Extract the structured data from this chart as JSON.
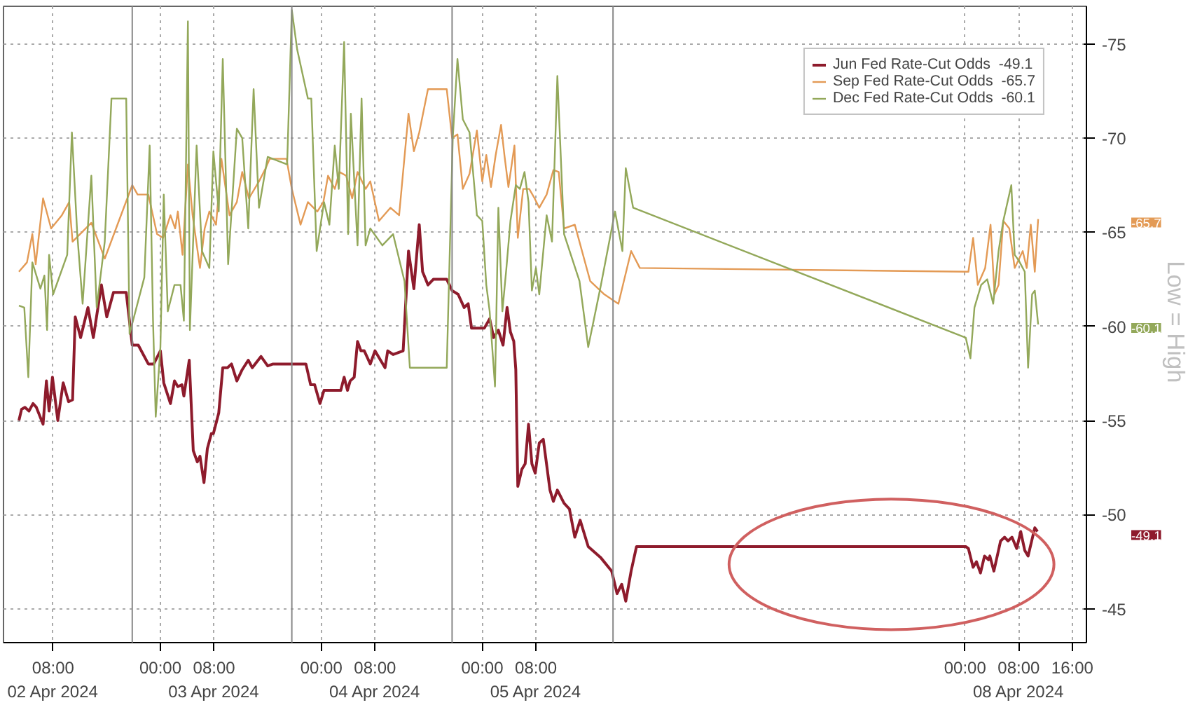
{
  "chart_data": {
    "type": "line",
    "xlim": [
      "2024-04-02T00:36",
      "2024-04-08T18:06"
    ],
    "ylim": [
      -43.2,
      -77
    ],
    "xticks": [
      {
        "value": "2024-04-02T08:00",
        "label": "08:00\n02 Apr 2024"
      },
      {
        "value": "2024-04-03T00:00",
        "label": "00:00"
      },
      {
        "value": "2024-04-03T08:00",
        "label": "08:00\n03 Apr 2024"
      },
      {
        "value": "2024-04-04T00:00",
        "label": "00:00"
      },
      {
        "value": "2024-04-04T08:00",
        "label": "08:00\n04 Apr 2024"
      },
      {
        "value": "2024-04-05T00:00",
        "label": "00:00"
      },
      {
        "value": "2024-04-05T08:00",
        "label": "08:00\n05 Apr 2024"
      },
      {
        "value": "2024-04-08T00:00",
        "label": "00:00"
      },
      {
        "value": "2024-04-08T08:00",
        "label": "08:00\n08 Apr 2024"
      },
      {
        "value": "2024-04-08T16:00",
        "label": "16:00"
      }
    ],
    "yticks": [
      -75,
      -70,
      -65,
      -60,
      -55,
      -50,
      -45
    ],
    "grid": true,
    "legend": "top right",
    "line_style": "solid",
    "series": [
      {
        "name": "Jun Fed Rate-Cut Odds  -49.1",
        "color": "#8e1b2c",
        "x": [
          "2024-04-02T02:54",
          "2024-04-02T03:18",
          "2024-04-02T03:48",
          "2024-04-02T04:24",
          "2024-04-02T05:00",
          "2024-04-02T05:30",
          "2024-04-02T06:30",
          "2024-04-02T07:00",
          "2024-04-02T07:24",
          "2024-04-02T07:54",
          "2024-04-02T08:42",
          "2024-04-02T09:30",
          "2024-04-02T10:18",
          "2024-04-02T10:54",
          "2024-04-02T11:18",
          "2024-04-02T12:06",
          "2024-04-02T13:12",
          "2024-04-02T14:00",
          "2024-04-02T15:12",
          "2024-04-02T16:00",
          "2024-04-02T17:00",
          "2024-04-02T18:54",
          "2024-04-02T19:48",
          "2024-04-02T20:42",
          "2024-04-02T22:12",
          "2024-04-02T23:00",
          "2024-04-03T00:00",
          "2024-04-03T00:30",
          "2024-04-03T01:30",
          "2024-04-03T02:06",
          "2024-04-03T02:36",
          "2024-04-03T03:12",
          "2024-04-03T03:30",
          "2024-04-03T04:18",
          "2024-04-03T04:54",
          "2024-04-03T05:30",
          "2024-04-03T05:54",
          "2024-04-03T06:30",
          "2024-04-03T07:00",
          "2024-04-03T07:36",
          "2024-04-03T07:54",
          "2024-04-03T08:42",
          "2024-04-03T09:18",
          "2024-04-03T10:00",
          "2024-04-03T10:36",
          "2024-04-03T11:24",
          "2024-04-03T12:12",
          "2024-04-03T13:06",
          "2024-04-03T13:42",
          "2024-04-03T15:00",
          "2024-04-03T16:00",
          "2024-04-03T16:48",
          "2024-04-03T21:42",
          "2024-04-03T22:24",
          "2024-04-03T23:00",
          "2024-04-03T23:48",
          "2024-04-04T00:24",
          "2024-04-04T02:54",
          "2024-04-04T03:24",
          "2024-04-04T03:54",
          "2024-04-04T04:18",
          "2024-04-04T04:54",
          "2024-04-04T05:24",
          "2024-04-04T05:54",
          "2024-04-04T06:24",
          "2024-04-04T07:18",
          "2024-04-04T08:00",
          "2024-04-04T09:30",
          "2024-04-04T09:54",
          "2024-04-04T10:42",
          "2024-04-04T12:12",
          "2024-04-04T13:00",
          "2024-04-04T13:48",
          "2024-04-04T14:36",
          "2024-04-04T15:06",
          "2024-04-04T15:54",
          "2024-04-04T16:42",
          "2024-04-04T18:42",
          "2024-04-04T19:30",
          "2024-04-04T20:24",
          "2024-04-04T21:18",
          "2024-04-04T21:54",
          "2024-04-04T22:24",
          "2024-04-05T00:18",
          "2024-04-05T01:06",
          "2024-04-05T01:42",
          "2024-04-05T02:24",
          "2024-04-05T03:06",
          "2024-04-05T03:42",
          "2024-04-05T04:12",
          "2024-04-05T04:42",
          "2024-04-05T05:00",
          "2024-04-05T05:18",
          "2024-04-05T05:54",
          "2024-04-05T06:24",
          "2024-04-05T06:54",
          "2024-04-05T07:24",
          "2024-04-05T07:54",
          "2024-04-05T08:30",
          "2024-04-05T09:06",
          "2024-04-05T10:06",
          "2024-04-05T10:36",
          "2024-04-05T11:12",
          "2024-04-05T12:12",
          "2024-04-05T13:00",
          "2024-04-05T13:48",
          "2024-04-05T14:36",
          "2024-04-05T15:48",
          "2024-04-05T17:42",
          "2024-04-05T19:18",
          "2024-04-05T20:06",
          "2024-04-05T20:48",
          "2024-04-05T21:24",
          "2024-04-05T22:12",
          "2024-04-05T23:00",
          "2024-04-08T00:06",
          "2024-04-08T00:30",
          "2024-04-08T01:12",
          "2024-04-08T01:42",
          "2024-04-08T02:18",
          "2024-04-08T02:54",
          "2024-04-08T03:30",
          "2024-04-08T03:42",
          "2024-04-08T04:18",
          "2024-04-08T05:18",
          "2024-04-08T05:54",
          "2024-04-08T06:24",
          "2024-04-08T07:00",
          "2024-04-08T07:42",
          "2024-04-08T08:18",
          "2024-04-08T08:54",
          "2024-04-08T09:24",
          "2024-04-08T10:24",
          "2024-04-08T10:48"
        ],
        "values": [
          -55.0,
          -55.6,
          -55.7,
          -55.5,
          -55.9,
          -55.7,
          -54.8,
          -57.1,
          -55.5,
          -57.3,
          -55.0,
          -57.0,
          -56.0,
          -56.1,
          -60.5,
          -59.4,
          -61.0,
          -59.4,
          -62.2,
          -60.5,
          -61.8,
          -61.8,
          -59.0,
          -59.0,
          -58.0,
          -58.0,
          -58.7,
          -57.0,
          -55.9,
          -57.1,
          -56.8,
          -56.9,
          -56.3,
          -58.2,
          -53.4,
          -52.8,
          -53.1,
          -51.7,
          -53.5,
          -54.3,
          -54.3,
          -55.4,
          -57.8,
          -57.8,
          -58.0,
          -57.1,
          -57.7,
          -58.2,
          -57.8,
          -58.4,
          -57.9,
          -58.0,
          -58.0,
          -56.9,
          -56.9,
          -55.9,
          -56.6,
          -56.6,
          -57.3,
          -56.6,
          -57.1,
          -57.3,
          -59.2,
          -58.7,
          -58.7,
          -58.0,
          -58.7,
          -57.8,
          -58.7,
          -58.5,
          -58.7,
          -64.0,
          -62.0,
          -65.4,
          -62.9,
          -62.2,
          -62.5,
          -62.5,
          -61.9,
          -61.7,
          -61.0,
          -61.2,
          -59.9,
          -59.9,
          -60.4,
          -59.4,
          -59.8,
          -59.0,
          -61.0,
          -59.7,
          -59.2,
          -57.7,
          -51.5,
          -52.4,
          -52.7,
          -54.8,
          -52.7,
          -52.2,
          -53.8,
          -54.0,
          -51.3,
          -50.7,
          -51.3,
          -50.6,
          -50.3,
          -48.8,
          -49.7,
          -48.3,
          -47.7,
          -47.0,
          -45.8,
          -46.3,
          -45.4,
          -47.0,
          -48.3,
          -48.3,
          -48.2,
          -47.2,
          -47.5,
          -46.9,
          -47.8,
          -47.6,
          -47.8,
          -47.0,
          -48.6,
          -48.8,
          -48.6,
          -48.8,
          -48.2,
          -49.1,
          -48.1,
          -47.8,
          -49.3,
          -49.1
        ]
      },
      {
        "name": "Sep Fed Rate-Cut Odds  -65.7",
        "color": "#e39a55",
        "x": [
          "2024-04-02T02:54",
          "2024-04-02T04:06",
          "2024-04-02T04:54",
          "2024-04-02T05:24",
          "2024-04-02T06:30",
          "2024-04-02T07:42",
          "2024-04-02T09:18",
          "2024-04-02T10:24",
          "2024-04-02T10:54",
          "2024-04-02T13:42",
          "2024-04-02T15:42",
          "2024-04-02T19:48",
          "2024-04-02T20:36",
          "2024-04-02T22:12",
          "2024-04-02T23:30",
          "2024-04-03T00:24",
          "2024-04-03T01:30",
          "2024-04-03T02:12",
          "2024-04-03T02:36",
          "2024-04-03T03:18",
          "2024-04-03T04:06",
          "2024-04-03T04:48",
          "2024-04-03T05:54",
          "2024-04-03T06:36",
          "2024-04-03T07:18",
          "2024-04-03T08:18",
          "2024-04-03T09:06",
          "2024-04-03T10:18",
          "2024-04-03T11:24",
          "2024-04-03T12:12",
          "2024-04-03T13:12",
          "2024-04-03T14:42",
          "2024-04-03T15:42",
          "2024-04-03T16:18",
          "2024-04-03T18:48",
          "2024-04-03T19:36",
          "2024-04-03T20:54",
          "2024-04-03T22:00",
          "2024-04-03T23:24",
          "2024-04-04T00:18",
          "2024-04-04T01:00",
          "2024-04-04T02:00",
          "2024-04-04T02:42",
          "2024-04-04T03:42",
          "2024-04-04T04:36",
          "2024-04-04T05:24",
          "2024-04-04T06:36",
          "2024-04-04T07:18",
          "2024-04-04T08:36",
          "2024-04-04T10:18",
          "2024-04-04T11:36",
          "2024-04-04T13:00",
          "2024-04-04T13:48",
          "2024-04-04T14:36",
          "2024-04-04T15:54",
          "2024-04-04T18:42",
          "2024-04-04T19:30",
          "2024-04-04T20:18",
          "2024-04-04T21:06",
          "2024-04-04T22:06",
          "2024-04-04T23:12",
          "2024-04-05T00:00",
          "2024-04-05T00:36",
          "2024-04-05T01:18",
          "2024-04-05T02:00",
          "2024-04-05T02:48",
          "2024-04-05T03:18",
          "2024-04-05T03:54",
          "2024-04-05T04:48",
          "2024-04-05T05:18",
          "2024-04-05T06:06",
          "2024-04-05T07:00",
          "2024-04-05T07:48",
          "2024-04-05T08:30",
          "2024-04-05T09:36",
          "2024-04-05T10:36",
          "2024-04-05T11:24",
          "2024-04-05T12:12",
          "2024-04-05T13:48",
          "2024-04-05T16:06",
          "2024-04-05T18:12",
          "2024-04-05T20:18",
          "2024-04-05T22:12",
          "2024-04-05T23:30",
          "2024-04-08T00:30",
          "2024-04-08T01:12",
          "2024-04-08T01:54",
          "2024-04-08T03:00",
          "2024-04-08T03:48",
          "2024-04-08T04:24",
          "2024-04-08T05:00",
          "2024-04-08T05:42",
          "2024-04-08T06:36",
          "2024-04-08T07:24",
          "2024-04-08T08:36",
          "2024-04-08T09:12",
          "2024-04-08T09:48",
          "2024-04-08T10:24",
          "2024-04-08T10:54"
        ],
        "values": [
          -62.9,
          -63.4,
          -64.9,
          -63.3,
          -66.8,
          -65.2,
          -65.9,
          -66.6,
          -64.5,
          -65.5,
          -63.6,
          -67.5,
          -67.0,
          -67.0,
          -64.9,
          -64.7,
          -65.9,
          -65.2,
          -66.1,
          -63.8,
          -68.6,
          -65.9,
          -63.1,
          -65.2,
          -66.1,
          -65.4,
          -68.9,
          -65.9,
          -66.6,
          -68.2,
          -66.8,
          -67.7,
          -68.4,
          -68.9,
          -68.9,
          -67.3,
          -65.4,
          -66.6,
          -66.1,
          -66.6,
          -68.0,
          -67.3,
          -68.2,
          -68.0,
          -66.8,
          -68.2,
          -67.3,
          -67.7,
          -65.6,
          -66.3,
          -65.9,
          -71.3,
          -69.3,
          -70.3,
          -72.6,
          -72.6,
          -70.0,
          -70.2,
          -67.3,
          -68.1,
          -70.4,
          -67.7,
          -69.1,
          -67.4,
          -69.1,
          -70.7,
          -69.1,
          -67.4,
          -69.6,
          -64.7,
          -67.3,
          -67.3,
          -66.8,
          -66.3,
          -67.0,
          -68.3,
          -68.2,
          -65.2,
          -65.4,
          -62.4,
          -61.7,
          -61.2,
          -64.0,
          -63.1,
          -62.9,
          -64.7,
          -62.2,
          -63.1,
          -65.4,
          -61.7,
          -62.2,
          -65.6,
          -65.2,
          -63.1,
          -64.0,
          -63.1,
          -65.4,
          -62.9,
          -65.7
        ]
      },
      {
        "name": "Dec Fed Rate-Cut Odds  -60.1",
        "color": "#93a85a",
        "x": [
          "2024-04-02T02:54",
          "2024-04-02T03:42",
          "2024-04-02T04:18",
          "2024-04-02T04:54",
          "2024-04-02T06:06",
          "2024-04-02T06:42",
          "2024-04-02T07:06",
          "2024-04-02T07:24",
          "2024-04-02T08:00",
          "2024-04-02T10:06",
          "2024-04-02T10:48",
          "2024-04-02T11:36",
          "2024-04-02T12:24",
          "2024-04-02T13:42",
          "2024-04-02T14:30",
          "2024-04-02T15:42",
          "2024-04-02T16:42",
          "2024-04-02T18:54",
          "2024-04-02T19:24",
          "2024-04-02T21:36",
          "2024-04-02T22:24",
          "2024-04-02T22:54",
          "2024-04-02T23:18",
          "2024-04-03T00:00",
          "2024-04-03T00:30",
          "2024-04-03T01:06",
          "2024-04-03T02:06",
          "2024-04-03T03:00",
          "2024-04-03T03:30",
          "2024-04-03T04:06",
          "2024-04-03T04:24",
          "2024-04-03T05:24",
          "2024-04-03T06:12",
          "2024-04-03T07:18",
          "2024-04-03T07:54",
          "2024-04-03T08:42",
          "2024-04-03T09:18",
          "2024-04-03T10:06",
          "2024-04-03T11:24",
          "2024-04-03T12:12",
          "2024-04-03T13:06",
          "2024-04-03T13:54",
          "2024-04-03T14:42",
          "2024-04-03T16:00",
          "2024-04-03T18:54",
          "2024-04-03T19:36",
          "2024-04-03T20:24",
          "2024-04-03T22:00",
          "2024-04-03T22:30",
          "2024-04-03T23:18",
          "2024-04-04T00:24",
          "2024-04-04T01:12",
          "2024-04-04T02:00",
          "2024-04-04T02:36",
          "2024-04-04T03:24",
          "2024-04-04T04:00",
          "2024-04-04T04:24",
          "2024-04-04T05:24",
          "2024-04-04T06:00",
          "2024-04-04T06:36",
          "2024-04-04T07:18",
          "2024-04-04T09:06",
          "2024-04-04T10:42",
          "2024-04-04T12:24",
          "2024-04-04T13:12",
          "2024-04-04T18:42",
          "2024-04-04T19:36",
          "2024-04-04T20:18",
          "2024-04-04T21:06",
          "2024-04-04T22:06",
          "2024-04-04T23:12",
          "2024-04-05T00:00",
          "2024-04-05T00:36",
          "2024-04-05T01:06",
          "2024-04-05T01:54",
          "2024-04-05T02:24",
          "2024-04-05T03:00",
          "2024-04-05T03:36",
          "2024-04-05T04:12",
          "2024-04-05T05:00",
          "2024-04-05T05:36",
          "2024-04-05T06:18",
          "2024-04-05T06:54",
          "2024-04-05T07:24",
          "2024-04-05T08:00",
          "2024-04-05T08:30",
          "2024-04-05T09:36",
          "2024-04-05T10:24",
          "2024-04-05T11:12",
          "2024-04-05T12:12",
          "2024-04-05T14:30",
          "2024-04-05T15:48",
          "2024-04-05T17:42",
          "2024-04-05T19:48",
          "2024-04-05T20:54",
          "2024-04-05T21:24",
          "2024-04-05T22:30",
          "2024-04-08T00:06",
          "2024-04-08T00:48",
          "2024-04-08T01:24",
          "2024-04-08T02:24",
          "2024-04-08T03:18",
          "2024-04-08T04:12",
          "2024-04-08T05:00",
          "2024-04-08T05:42",
          "2024-04-08T06:54",
          "2024-04-08T07:24",
          "2024-04-08T08:00",
          "2024-04-08T08:54",
          "2024-04-08T09:24",
          "2024-04-08T10:00",
          "2024-04-08T10:24",
          "2024-04-08T10:54"
        ],
        "values": [
          -61.1,
          -61.0,
          -57.3,
          -63.4,
          -62.0,
          -62.7,
          -59.8,
          -63.8,
          -61.7,
          -63.8,
          -70.3,
          -64.9,
          -61.2,
          -68.0,
          -61.0,
          -64.5,
          -72.1,
          -72.1,
          -59.6,
          -62.6,
          -69.6,
          -60.3,
          -55.2,
          -58.9,
          -67.0,
          -60.8,
          -62.2,
          -62.2,
          -60.3,
          -76.2,
          -59.8,
          -69.6,
          -64.0,
          -63.1,
          -69.3,
          -66.1,
          -74.2,
          -63.3,
          -70.5,
          -70.0,
          -65.2,
          -72.6,
          -66.3,
          -69.0,
          -68.6,
          -76.8,
          -74.7,
          -72.1,
          -72.1,
          -64.0,
          -66.6,
          -65.4,
          -69.6,
          -67.3,
          -75.1,
          -64.9,
          -71.3,
          -64.3,
          -72.1,
          -64.3,
          -65.2,
          -64.3,
          -64.9,
          -62.4,
          -57.8,
          -57.8,
          -70.0,
          -74.2,
          -71.0,
          -70.3,
          -65.9,
          -65.6,
          -62.2,
          -60.8,
          -56.8,
          -66.3,
          -60.8,
          -63.1,
          -65.6,
          -67.5,
          -67.3,
          -68.2,
          -66.6,
          -61.9,
          -63.1,
          -61.7,
          -65.9,
          -64.5,
          -73.3,
          -64.9,
          -62.4,
          -58.9,
          -62.2,
          -66.1,
          -64.0,
          -68.4,
          -66.3,
          -59.4,
          -58.3,
          -61.0,
          -62.2,
          -62.5,
          -61.2,
          -64.0,
          -65.6,
          -67.5,
          -63.8,
          -63.5,
          -62.9,
          -57.8,
          -61.7,
          -61.9,
          -60.1
        ]
      }
    ],
    "ref_lines": [
      {
        "axis": "x",
        "value": "2024-04-02T19:48",
        "color": "#888888"
      },
      {
        "axis": "x",
        "value": "2024-04-03T19:36",
        "color": "#888888"
      },
      {
        "axis": "x",
        "value": "2024-04-04T19:30",
        "color": "#888888"
      },
      {
        "axis": "x",
        "value": "2024-04-05T19:30",
        "color": "#888888"
      }
    ],
    "annotations": [
      "-49.1",
      "-65.7",
      "-60.1",
      "Low = High"
    ]
  }
}
